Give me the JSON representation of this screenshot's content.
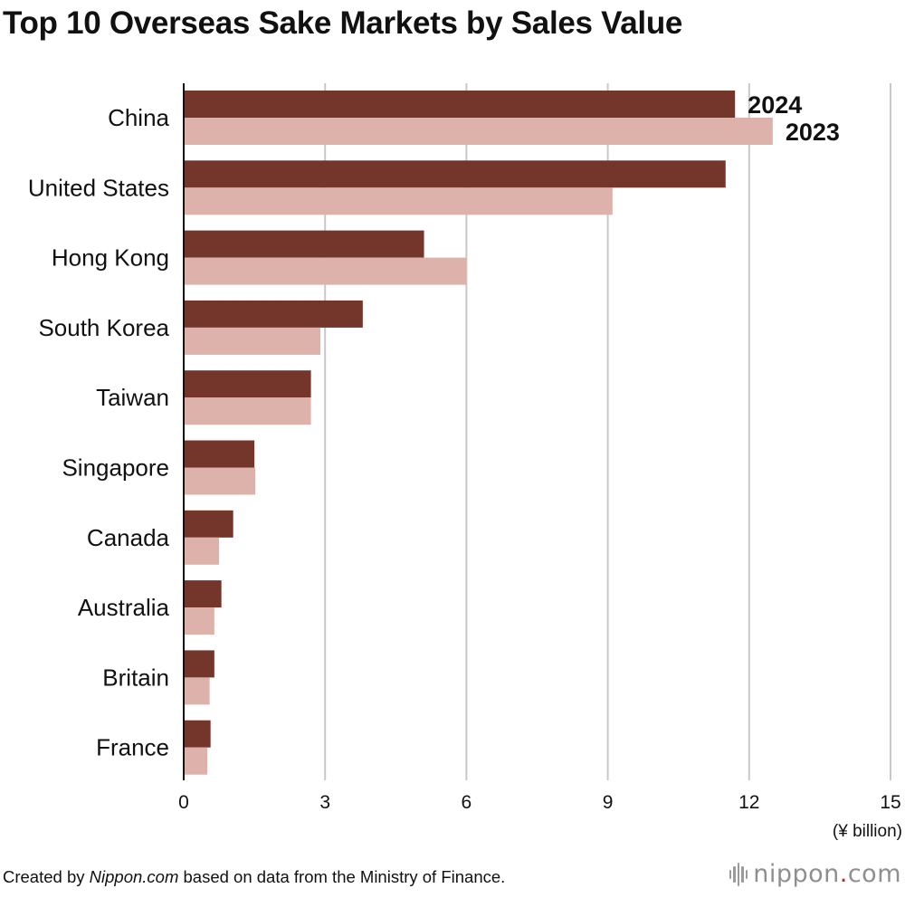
{
  "header": {
    "title": "Top 10 Overseas Sake Markets by Sales Value"
  },
  "footer": {
    "prefix": "Created by ",
    "source_name": "Nippon.com",
    "suffix": " based on data from the Ministry of Finance."
  },
  "brand": {
    "name_left": "nippon",
    "dot": ".",
    "name_right": "com",
    "icon": "nippon-logo-icon"
  },
  "colors": {
    "series_2024": "#74352a",
    "series_2023": "#dcb2aa",
    "grid": "#c8c8c8",
    "axis": "#111111",
    "brand_accent": "#d21f2e"
  },
  "chart_data": {
    "type": "bar",
    "orientation": "horizontal",
    "title": "Top 10 Overseas Sake Markets by Sales Value",
    "categories": [
      "China",
      "United States",
      "Hong Kong",
      "South Korea",
      "Taiwan",
      "Singapore",
      "Canada",
      "Australia",
      "Britain",
      "France"
    ],
    "series": [
      {
        "name": "2024",
        "values": [
          11.7,
          11.5,
          5.1,
          3.8,
          2.7,
          1.5,
          1.05,
          0.8,
          0.65,
          0.57
        ]
      },
      {
        "name": "2023",
        "values": [
          12.5,
          9.1,
          6.0,
          2.9,
          2.7,
          1.52,
          0.75,
          0.65,
          0.55,
          0.5
        ]
      }
    ],
    "xlim": [
      0,
      15
    ],
    "xticks": [
      0,
      3,
      6,
      9,
      12,
      15
    ],
    "xunit": "(¥ billion)",
    "grid": true,
    "legend": "inline-labels-beside-first-category"
  }
}
